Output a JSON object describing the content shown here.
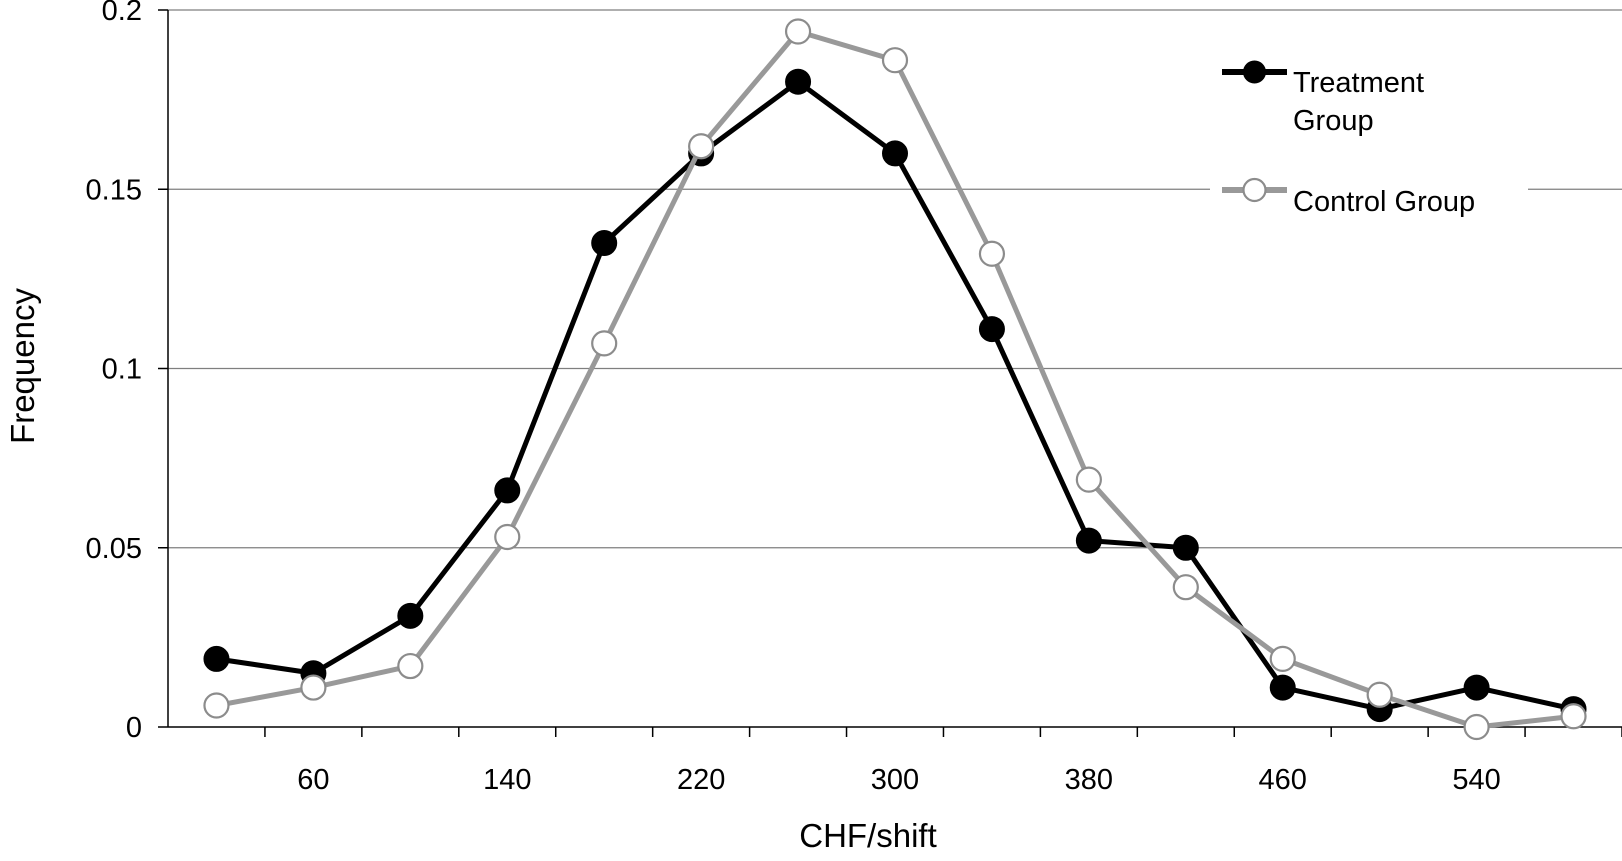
{
  "chart_data": {
    "type": "line",
    "xlabel": "CHF/shift",
    "ylabel": "Frequency",
    "x": [
      20,
      60,
      100,
      140,
      180,
      220,
      260,
      300,
      340,
      380,
      420,
      460,
      500,
      540,
      580
    ],
    "x_tick_labels": [
      "60",
      "140",
      "220",
      "300",
      "380",
      "460",
      "540"
    ],
    "x_tick_values": [
      60,
      140,
      220,
      300,
      380,
      460,
      540
    ],
    "xlim": [
      0,
      600
    ],
    "ylim": [
      0,
      0.2
    ],
    "y_ticks": [
      0,
      0.05,
      0.1,
      0.15,
      0.2
    ],
    "y_tick_labels": [
      "0",
      "0.05",
      "0.1",
      "0.15",
      "0.2"
    ],
    "grid": "horizontal",
    "legend_position": "top-right",
    "series": [
      {
        "name": "Treatment Group",
        "legend_lines": [
          "Treatment",
          "Group"
        ],
        "color": "#000000",
        "marker": "filled-circle",
        "values": [
          0.019,
          0.015,
          0.031,
          0.066,
          0.135,
          0.16,
          0.18,
          0.16,
          0.111,
          0.052,
          0.05,
          0.011,
          0.005,
          0.011,
          0.005
        ]
      },
      {
        "name": "Control Group",
        "legend_lines": [
          "Control Group"
        ],
        "color": "#999999",
        "marker": "open-circle",
        "values": [
          0.006,
          0.011,
          0.017,
          0.053,
          0.107,
          0.162,
          0.194,
          0.186,
          0.132,
          0.069,
          0.039,
          0.019,
          0.009,
          0.0,
          0.003
        ]
      }
    ]
  }
}
